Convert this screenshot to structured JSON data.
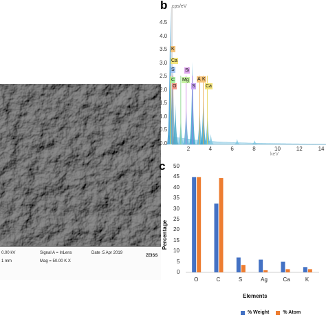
{
  "panels": {
    "b_label": "b",
    "c_label": "c"
  },
  "sem": {
    "info": {
      "voltage": "0.00 kV",
      "scale": "1 mm",
      "signal": "Signal A = InLens",
      "mag": "Mag = 50.00 K X",
      "date": "Date :5 Apr 2019",
      "logo": "ZEISS"
    }
  },
  "eds": {
    "unit": "cps/eV",
    "x_label": "keV",
    "y_ticks": [
      "4.5",
      "4.0",
      "3.5",
      "3.0",
      "2.5",
      "2.0",
      "1.5",
      "1.0",
      "0.5",
      "0.0"
    ],
    "x_ticks": [
      "2",
      "4",
      "6",
      "8",
      "10",
      "12",
      "14"
    ],
    "tags": [
      {
        "text": "K",
        "color": "#f6c37a"
      },
      {
        "text": "Ca",
        "color": "#f3e37a"
      },
      {
        "text": "S",
        "color": "#a7c7f2"
      },
      {
        "text": "Si",
        "color": "#e0a8f0"
      },
      {
        "text": "C",
        "color": "#a9f0a2"
      },
      {
        "text": "Mg",
        "color": "#c6f2a2"
      },
      {
        "text": "O",
        "color": "#f49a8d"
      },
      {
        "text": "S",
        "color": "#c9a6f5"
      },
      {
        "text": "A",
        "color": "#f6c37a"
      },
      {
        "text": "K",
        "color": "#f6c37a"
      },
      {
        "text": "Ca",
        "color": "#f3e37a"
      }
    ]
  },
  "chart_data": {
    "type": "bar",
    "categories": [
      "O",
      "C",
      "S",
      "Ag",
      "Ca",
      "K"
    ],
    "series": [
      {
        "name": "% Weight",
        "color": "#4472c4",
        "values": [
          45,
          32.5,
          7,
          6,
          5,
          2.5
        ]
      },
      {
        "name": "% Atom",
        "color": "#ed7d31",
        "values": [
          45,
          44.5,
          3.5,
          1,
          1.5,
          1.5
        ]
      }
    ],
    "xlabel": "Elements",
    "ylabel": "Percentage",
    "ylim": [
      0,
      50
    ],
    "y_ticks": [
      "0",
      "5",
      "10",
      "15",
      "20",
      "25",
      "30",
      "35",
      "40",
      "45",
      "50"
    ],
    "grid": false,
    "legend": "bottom"
  }
}
